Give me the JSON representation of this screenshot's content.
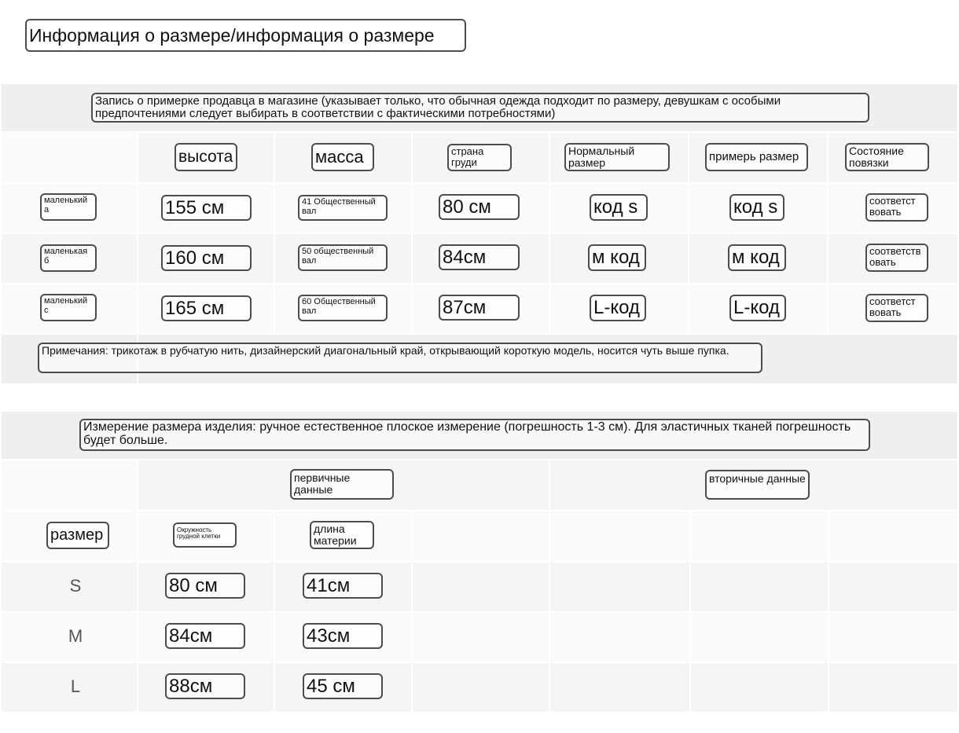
{
  "page": {
    "title": "Информация о размере/информация о размере"
  },
  "fitting": {
    "note": "Запись о примерке продавца в магазине (указывает только, что обычная одежда подходит по размеру, девушкам с особыми предпочтениями следует выбирать в соответствии с фактическими потребностями)",
    "headers": [
      "высота",
      "масса",
      "страна груди",
      "Нормальный размер",
      "примерь размер",
      "Состояние повязки"
    ],
    "rows": [
      {
        "label": "маленький а",
        "height": "155 см",
        "weight": "41 Общественный вал",
        "chest": "80 см",
        "normal": "код s",
        "tried": "код s",
        "fit": "соответст вовать"
      },
      {
        "label": "маленькая б",
        "height": "160 см",
        "weight": "50 общественный вал",
        "chest": "84см",
        "normal": "м код",
        "tried": "м код",
        "fit": "соответств овать"
      },
      {
        "label": "маленький с",
        "height": "165 см",
        "weight": "60 Общественный вал",
        "chest": "87см",
        "normal": "L-код",
        "tried": "L-код",
        "fit": "соответст вовать"
      }
    ],
    "remark": "Примечания: трикотаж в рубчатую нить, дизайнерский диагональный край, открывающий короткую модель, носится чуть выше пупка."
  },
  "measurement": {
    "note": "Измерение размера изделия: ручное естественное плоское измерение (погрешность 1-3 см). Для эластичных тканей погрешность будет больше.",
    "group_primary": "первичные данные",
    "group_secondary": "вторичные данные",
    "size_label": "размер",
    "col_chest": "Окружность грудной клетки",
    "col_length": "длина материи",
    "rows": [
      {
        "size": "S",
        "chest": "80 см",
        "length": "41см"
      },
      {
        "size": "M",
        "chest": "84см",
        "length": "43см"
      },
      {
        "size": "L",
        "chest": "88см",
        "length": "45 см"
      }
    ]
  }
}
